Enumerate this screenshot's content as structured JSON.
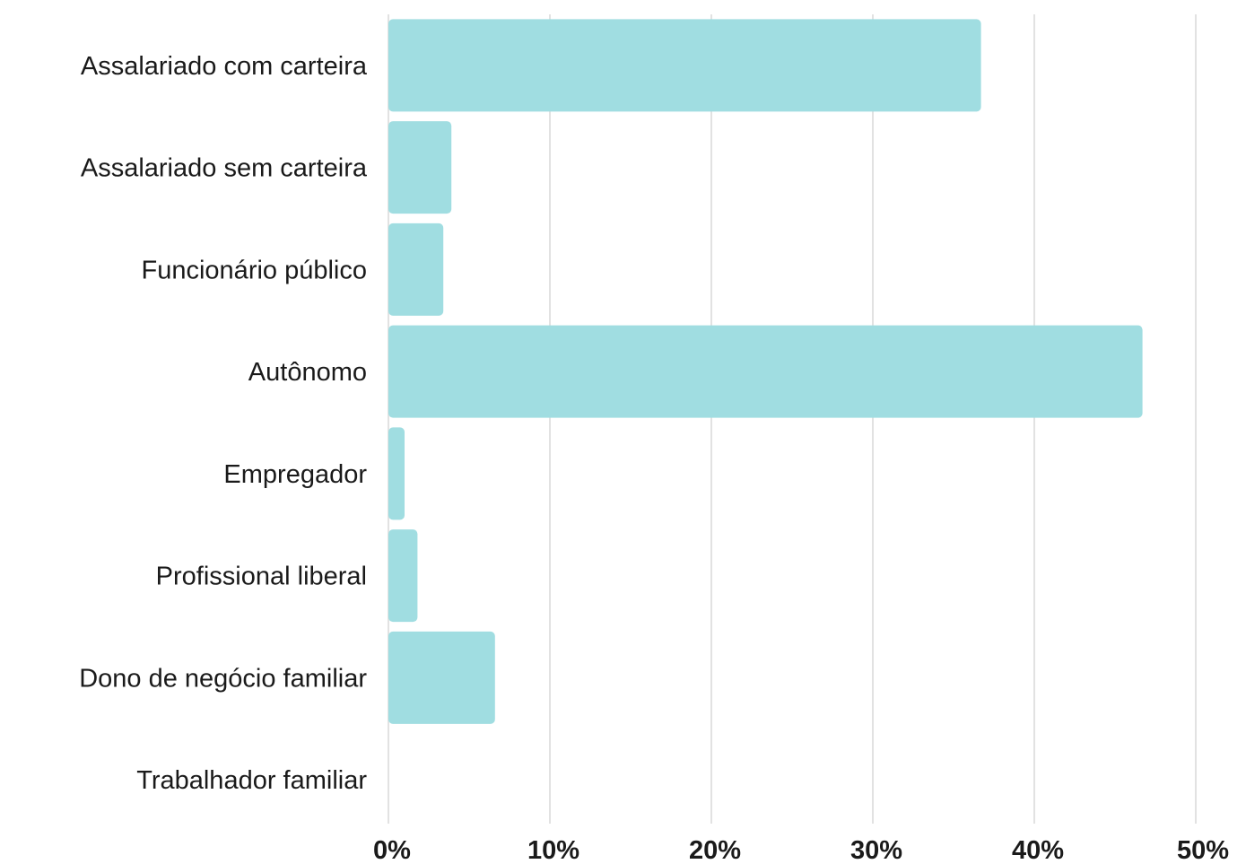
{
  "chart_data": {
    "type": "bar",
    "orientation": "horizontal",
    "categories": [
      "Assalariado com carteira",
      "Assalariado sem carteira",
      "Funcionário público",
      "Autônomo",
      "Empregador",
      "Profissional liberal",
      "Dono de negócio familiar",
      "Trabalhador familiar"
    ],
    "values": [
      36.7,
      3.9,
      3.4,
      46.7,
      1.0,
      1.8,
      6.6,
      0
    ],
    "xlim": [
      0,
      50
    ],
    "x_ticks": [
      0,
      10,
      20,
      30,
      40,
      50
    ],
    "x_tick_labels": [
      "0%",
      "10%",
      "20%",
      "30%",
      "40%",
      "50%"
    ],
    "title": "",
    "xlabel": "",
    "ylabel": "",
    "grid": true,
    "legend": "none",
    "bar_color": "#a0dde1",
    "grid_color": "#e2e2e2",
    "text_color": "#1a1a1a"
  }
}
